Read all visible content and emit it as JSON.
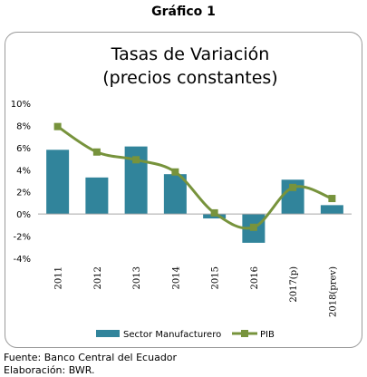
{
  "figure_title": "Gráfico 1",
  "footer": {
    "source": "Fuente: Banco Central del Ecuador",
    "elaboration": "Elaboración: BWR."
  },
  "colors": {
    "bar": "#31849B",
    "line": "#77933C",
    "marker": "#77933C",
    "frame": "#9a9a9a",
    "text": "#000000"
  },
  "chart_data": {
    "type": "bar",
    "title_lines": [
      "Tasas de Variación",
      "(precios constantes)"
    ],
    "categories": [
      "2011",
      "2012",
      "2013",
      "2014",
      "2015",
      "2016",
      "2017(p)",
      "2018(prev)"
    ],
    "series": [
      {
        "name": "Sector Manufacturero",
        "type": "bar",
        "values": [
          5.8,
          3.3,
          6.1,
          3.6,
          -0.4,
          -2.6,
          3.1,
          0.8
        ]
      },
      {
        "name": "PIB",
        "type": "line",
        "values": [
          7.9,
          5.6,
          4.9,
          3.8,
          0.1,
          -1.2,
          2.4,
          1.4
        ]
      }
    ],
    "ylim": [
      -4,
      10
    ],
    "yticks": [
      -4,
      -2,
      0,
      2,
      4,
      6,
      8,
      10
    ],
    "ytick_labels": [
      "-4%",
      "-2%",
      "0%",
      "2%",
      "4%",
      "6%",
      "8%",
      "10%"
    ],
    "grid": false,
    "legend_position": "bottom"
  }
}
